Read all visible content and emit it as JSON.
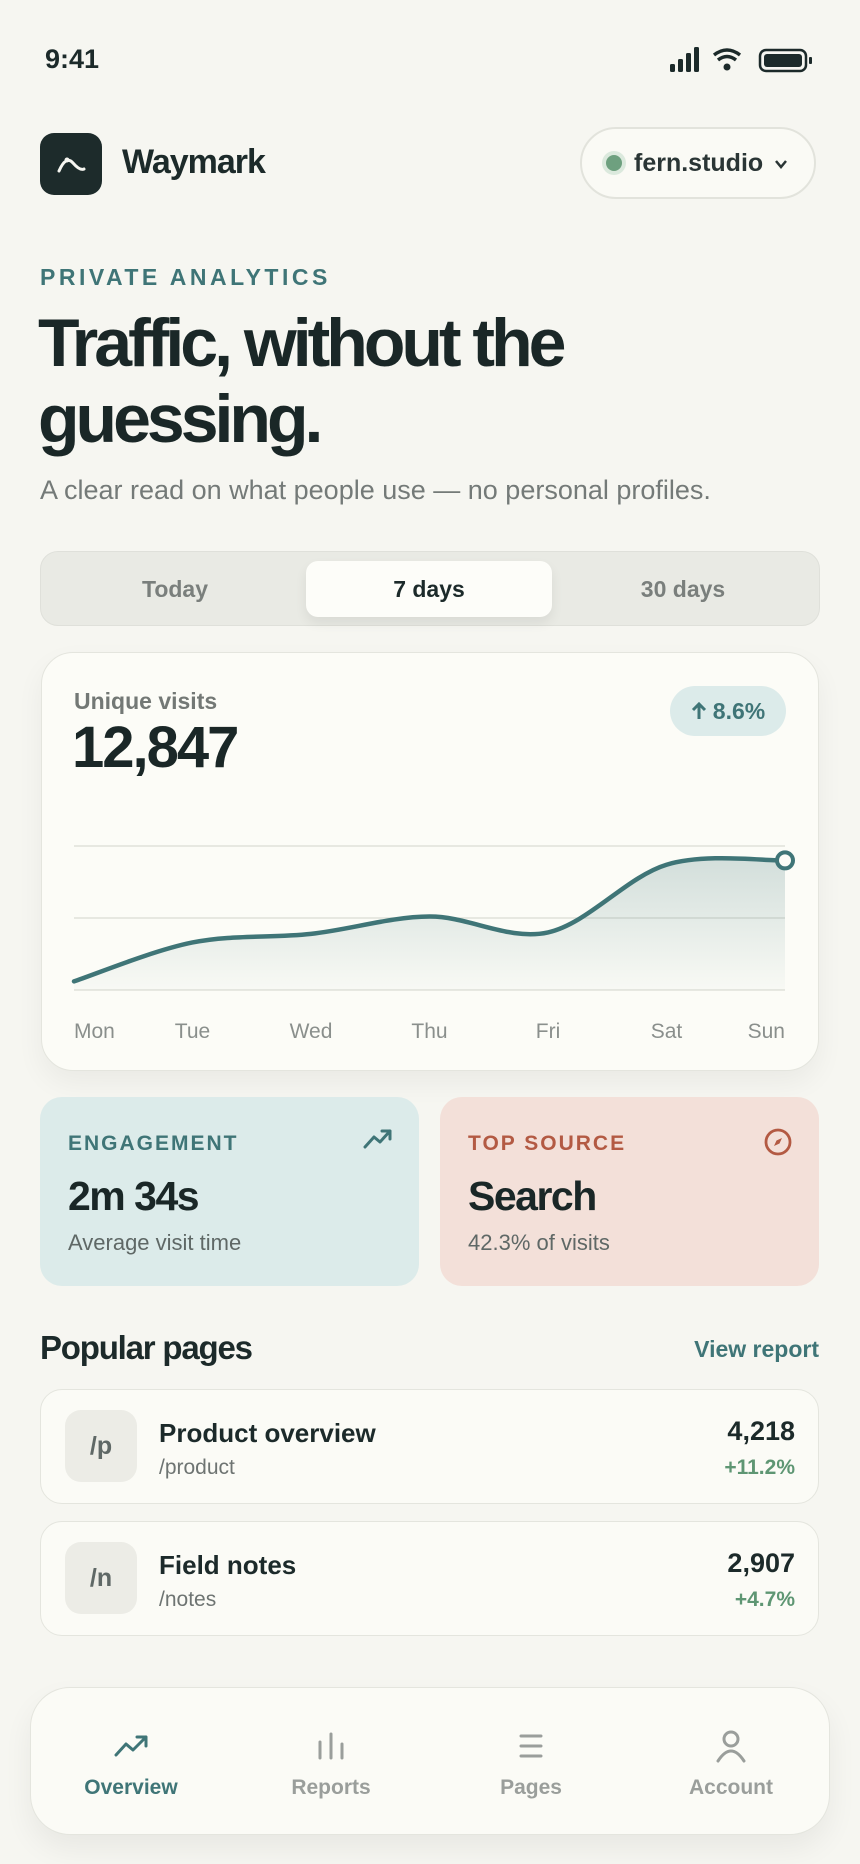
{
  "status_bar": {
    "time": "9:41"
  },
  "header": {
    "brand": "Waymark",
    "workspace": "fern.studio"
  },
  "hero": {
    "eyebrow": "PRIVATE ANALYTICS",
    "title": "Traffic, without the guessing.",
    "subtitle": "A clear read on what people use — no personal profiles."
  },
  "range_tabs": {
    "options": [
      "Today",
      "7 days",
      "30 days"
    ],
    "selected": 1
  },
  "visits_card": {
    "label": "Unique visits",
    "total": "12,847",
    "change": "8.6%"
  },
  "chart_data": {
    "type": "line",
    "categories": [
      "Mon",
      "Tue",
      "Wed",
      "Thu",
      "Fri",
      "Sat",
      "Sun"
    ],
    "values": [
      6,
      33,
      39,
      51,
      40,
      87,
      90
    ],
    "color": "#3f7577",
    "ylim": [
      0,
      100
    ],
    "yticks": [
      0,
      50,
      100
    ],
    "grid": true
  },
  "stats": [
    {
      "label": "ENGAGEMENT",
      "value": "2m 34s",
      "note": "Average visit time"
    },
    {
      "label": "TOP SOURCE",
      "value": "Search",
      "note": "42.3% of visits"
    }
  ],
  "popular_pages": {
    "title": "Popular pages",
    "action": "View report",
    "rows": [
      {
        "icon": "/p",
        "title": "Product overview",
        "path": "/product",
        "visits": "4,218",
        "change": "+11.2%"
      },
      {
        "icon": "/n",
        "title": "Field notes",
        "path": "/notes",
        "visits": "2,907",
        "change": "+4.7%"
      }
    ]
  },
  "nav": {
    "items": [
      "Overview",
      "Reports",
      "Pages",
      "Account"
    ],
    "selected": 0
  }
}
